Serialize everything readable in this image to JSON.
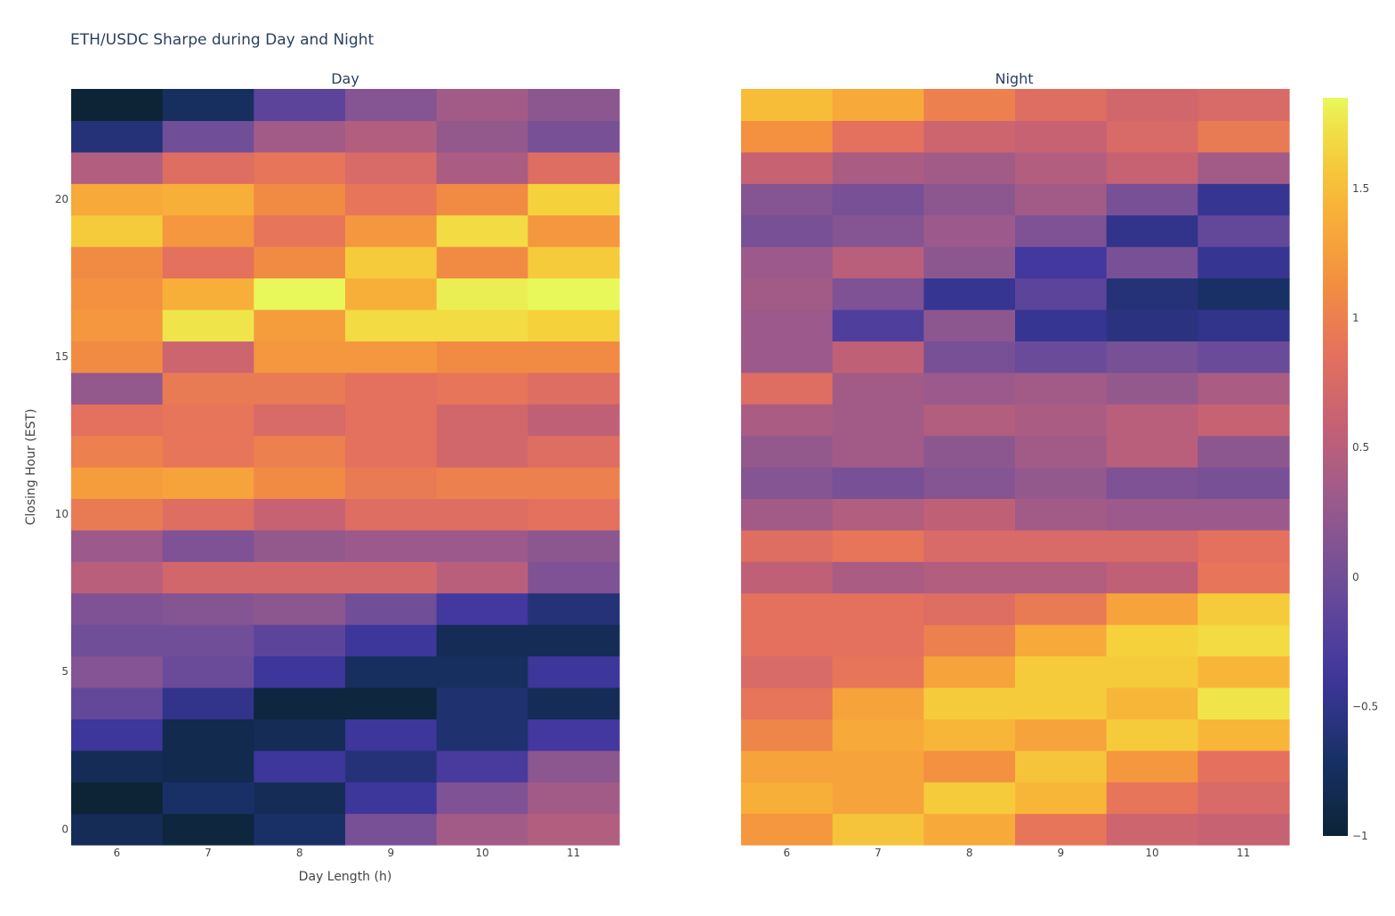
{
  "chart_data": {
    "type": "heatmap",
    "title": "ETH/USDC Sharpe during Day and Night",
    "xlabel": "Day Length (h)",
    "ylabel": "Closing Hour (EST)",
    "x": [
      6,
      7,
      8,
      9,
      10,
      11
    ],
    "y": [
      0,
      1,
      2,
      3,
      4,
      5,
      6,
      7,
      8,
      9,
      10,
      11,
      12,
      13,
      14,
      15,
      16,
      17,
      18,
      19,
      20,
      21,
      22,
      23
    ],
    "y_ticks": [
      0,
      5,
      10,
      15,
      20
    ],
    "x_ticks": [
      "6",
      "7",
      "8",
      "9",
      "10",
      "11"
    ],
    "colorscale": "Plasma-like (dark navy to yellow)",
    "zrange": [
      -1,
      1.85
    ],
    "colorbar_ticks": [
      {
        "value": -1,
        "label": "−1"
      },
      {
        "value": -0.5,
        "label": "−0.5"
      },
      {
        "value": 0,
        "label": "0"
      },
      {
        "value": 0.5,
        "label": "0.5"
      },
      {
        "value": 1,
        "label": "1"
      },
      {
        "value": 1.5,
        "label": "1.5"
      }
    ],
    "panels": [
      {
        "name": "Day",
        "z": [
          [
            -0.8,
            -0.95,
            -0.7,
            0.05,
            0.35,
            0.45
          ],
          [
            -1.0,
            -0.7,
            -0.8,
            -0.4,
            0.1,
            0.35
          ],
          [
            -0.8,
            -0.85,
            -0.4,
            -0.6,
            -0.3,
            0.2
          ],
          [
            -0.4,
            -0.85,
            -0.8,
            -0.4,
            -0.65,
            -0.35
          ],
          [
            -0.1,
            -0.5,
            -0.95,
            -0.95,
            -0.65,
            -0.8
          ],
          [
            0.15,
            -0.05,
            -0.4,
            -0.75,
            -0.75,
            -0.4
          ],
          [
            0.0,
            0.0,
            -0.15,
            -0.4,
            -0.8,
            -0.8
          ],
          [
            0.1,
            0.15,
            0.2,
            0.0,
            -0.35,
            -0.6
          ],
          [
            0.5,
            0.7,
            0.7,
            0.7,
            0.5,
            0.1
          ],
          [
            0.3,
            0.1,
            0.25,
            0.3,
            0.3,
            0.2
          ],
          [
            0.95,
            0.8,
            0.6,
            0.8,
            0.8,
            0.85
          ],
          [
            1.25,
            1.3,
            1.1,
            0.95,
            1.0,
            1.0
          ],
          [
            1.0,
            0.9,
            1.0,
            0.85,
            0.7,
            0.8
          ],
          [
            0.85,
            0.9,
            0.75,
            0.85,
            0.7,
            0.55
          ],
          [
            0.25,
            0.95,
            0.95,
            0.85,
            0.9,
            0.8
          ],
          [
            1.1,
            0.65,
            1.2,
            1.2,
            1.1,
            1.1
          ],
          [
            1.2,
            1.75,
            1.25,
            1.7,
            1.7,
            1.65
          ],
          [
            1.15,
            1.4,
            1.85,
            1.4,
            1.8,
            1.85
          ],
          [
            1.1,
            0.85,
            1.1,
            1.6,
            1.1,
            1.6
          ],
          [
            1.6,
            1.2,
            0.9,
            1.2,
            1.7,
            1.2
          ],
          [
            1.35,
            1.4,
            1.1,
            0.9,
            1.1,
            1.65
          ],
          [
            0.45,
            0.8,
            0.9,
            0.75,
            0.4,
            0.8
          ],
          [
            -0.6,
            0.0,
            0.35,
            0.45,
            0.25,
            0.05
          ],
          [
            -1.0,
            -0.75,
            -0.15,
            0.15,
            0.35,
            0.2
          ]
        ]
      },
      {
        "name": "Night",
        "z": [
          [
            1.2,
            1.55,
            1.35,
            0.9,
            0.65,
            0.6
          ],
          [
            1.4,
            1.3,
            1.6,
            1.45,
            0.9,
            0.75
          ],
          [
            1.3,
            1.3,
            1.15,
            1.55,
            1.2,
            0.85
          ],
          [
            1.05,
            1.35,
            1.45,
            1.3,
            1.6,
            1.45
          ],
          [
            0.9,
            1.3,
            1.6,
            1.6,
            1.45,
            1.75
          ],
          [
            0.75,
            0.9,
            1.3,
            1.6,
            1.6,
            1.45
          ],
          [
            0.85,
            0.85,
            1.0,
            1.35,
            1.65,
            1.7
          ],
          [
            0.85,
            0.85,
            0.8,
            0.95,
            1.3,
            1.6
          ],
          [
            0.55,
            0.4,
            0.45,
            0.45,
            0.55,
            0.9
          ],
          [
            0.8,
            0.9,
            0.75,
            0.75,
            0.75,
            0.85
          ],
          [
            0.35,
            0.45,
            0.55,
            0.35,
            0.3,
            0.3
          ],
          [
            0.15,
            0.05,
            0.15,
            0.25,
            0.1,
            0.05
          ],
          [
            0.25,
            0.35,
            0.2,
            0.35,
            0.5,
            0.2
          ],
          [
            0.4,
            0.35,
            0.45,
            0.4,
            0.5,
            0.6
          ],
          [
            0.8,
            0.35,
            0.3,
            0.35,
            0.25,
            0.4
          ],
          [
            0.3,
            0.55,
            0.05,
            -0.05,
            0.05,
            -0.05
          ],
          [
            0.3,
            -0.25,
            0.2,
            -0.45,
            -0.55,
            -0.5
          ],
          [
            0.35,
            0.1,
            -0.45,
            -0.15,
            -0.6,
            -0.7
          ],
          [
            0.3,
            0.5,
            0.2,
            -0.35,
            0.05,
            -0.45
          ],
          [
            0.05,
            0.15,
            0.3,
            0.1,
            -0.5,
            -0.1
          ],
          [
            0.15,
            0.05,
            0.2,
            0.35,
            0.05,
            -0.45
          ],
          [
            0.6,
            0.4,
            0.35,
            0.45,
            0.6,
            0.35
          ],
          [
            1.15,
            0.85,
            0.65,
            0.6,
            0.75,
            0.95
          ],
          [
            1.5,
            1.35,
            1.0,
            0.8,
            0.7,
            0.75
          ]
        ]
      }
    ]
  }
}
